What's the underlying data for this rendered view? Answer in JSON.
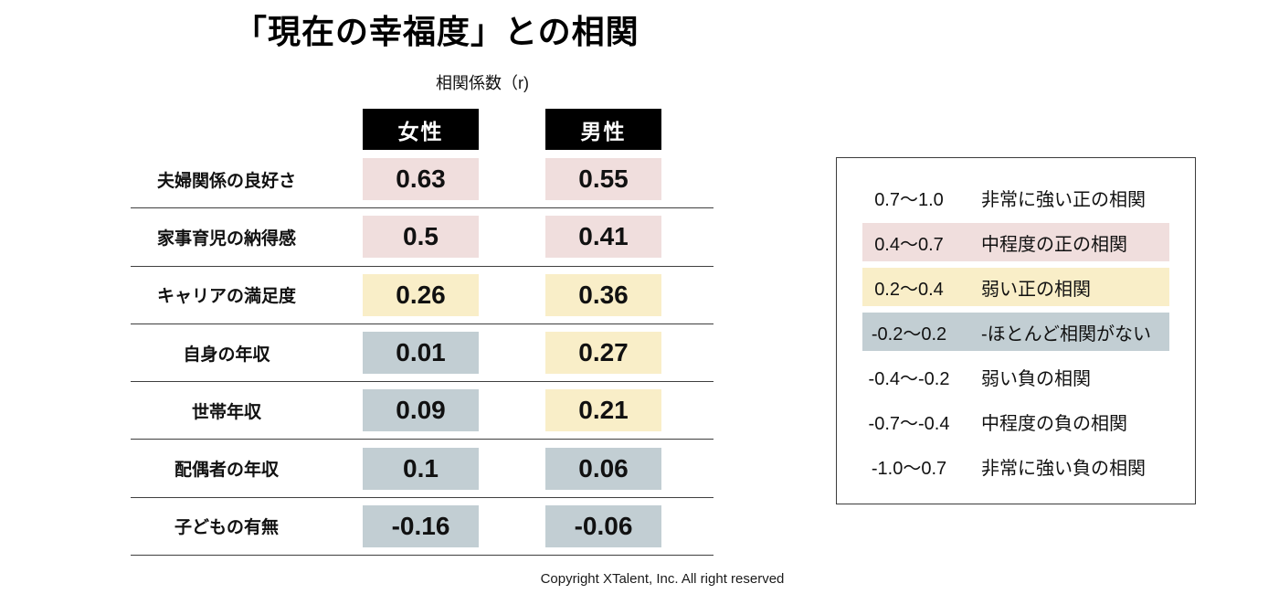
{
  "page": {
    "title": "「現在の幸福度」との相関",
    "subtitle": "相関係数（r)",
    "footer": "Copyright XTalent, Inc. All right reserved"
  },
  "colors": {
    "header_bg": "#000000",
    "header_text": "#ffffff",
    "moderate_positive": "#f0dedd",
    "weak_positive": "#f9eec8",
    "near_zero": "#c2ced3"
  },
  "chart_data": {
    "type": "table",
    "title": "「現在の幸福度」との相関",
    "value_label": "相関係数（r)",
    "columns": [
      "女性",
      "男性"
    ],
    "rows": [
      {
        "label": "夫婦関係の良好さ",
        "values": [
          0.63,
          0.55
        ],
        "bands": [
          "moderate_positive",
          "moderate_positive"
        ]
      },
      {
        "label": "家事育児の納得感",
        "values": [
          0.5,
          0.41
        ],
        "bands": [
          "moderate_positive",
          "moderate_positive"
        ]
      },
      {
        "label": "キャリアの満足度",
        "values": [
          0.26,
          0.36
        ],
        "bands": [
          "weak_positive",
          "weak_positive"
        ]
      },
      {
        "label": "自身の年収",
        "values": [
          0.01,
          0.27
        ],
        "bands": [
          "near_zero",
          "weak_positive"
        ]
      },
      {
        "label": "世帯年収",
        "values": [
          0.09,
          0.21
        ],
        "bands": [
          "near_zero",
          "weak_positive"
        ]
      },
      {
        "label": "配偶者の年収",
        "values": [
          0.1,
          0.06
        ],
        "bands": [
          "near_zero",
          "near_zero"
        ]
      },
      {
        "label": "子どもの有無",
        "values": [
          -0.16,
          -0.06
        ],
        "bands": [
          "near_zero",
          "near_zero"
        ]
      }
    ],
    "legend": [
      {
        "range": "0.7～1.0",
        "label": "非常に強い正の相関",
        "band": "no_fill"
      },
      {
        "range": "0.4～0.7",
        "label": "中程度の正の相関",
        "band": "moderate_positive"
      },
      {
        "range": "0.2～0.4",
        "label": "弱い正の相関",
        "band": "weak_positive"
      },
      {
        "range": "-0.2～0.2",
        "label": "-ほとんど相関がない",
        "band": "near_zero"
      },
      {
        "range": "-0.4～-0.2",
        "label": "弱い負の相関",
        "band": "no_fill"
      },
      {
        "range": "-0.7～-0.4",
        "label": "中程度の負の相関",
        "band": "no_fill"
      },
      {
        "range": "-1.0～0.7",
        "label": "非常に強い負の相関",
        "band": "no_fill"
      }
    ]
  }
}
